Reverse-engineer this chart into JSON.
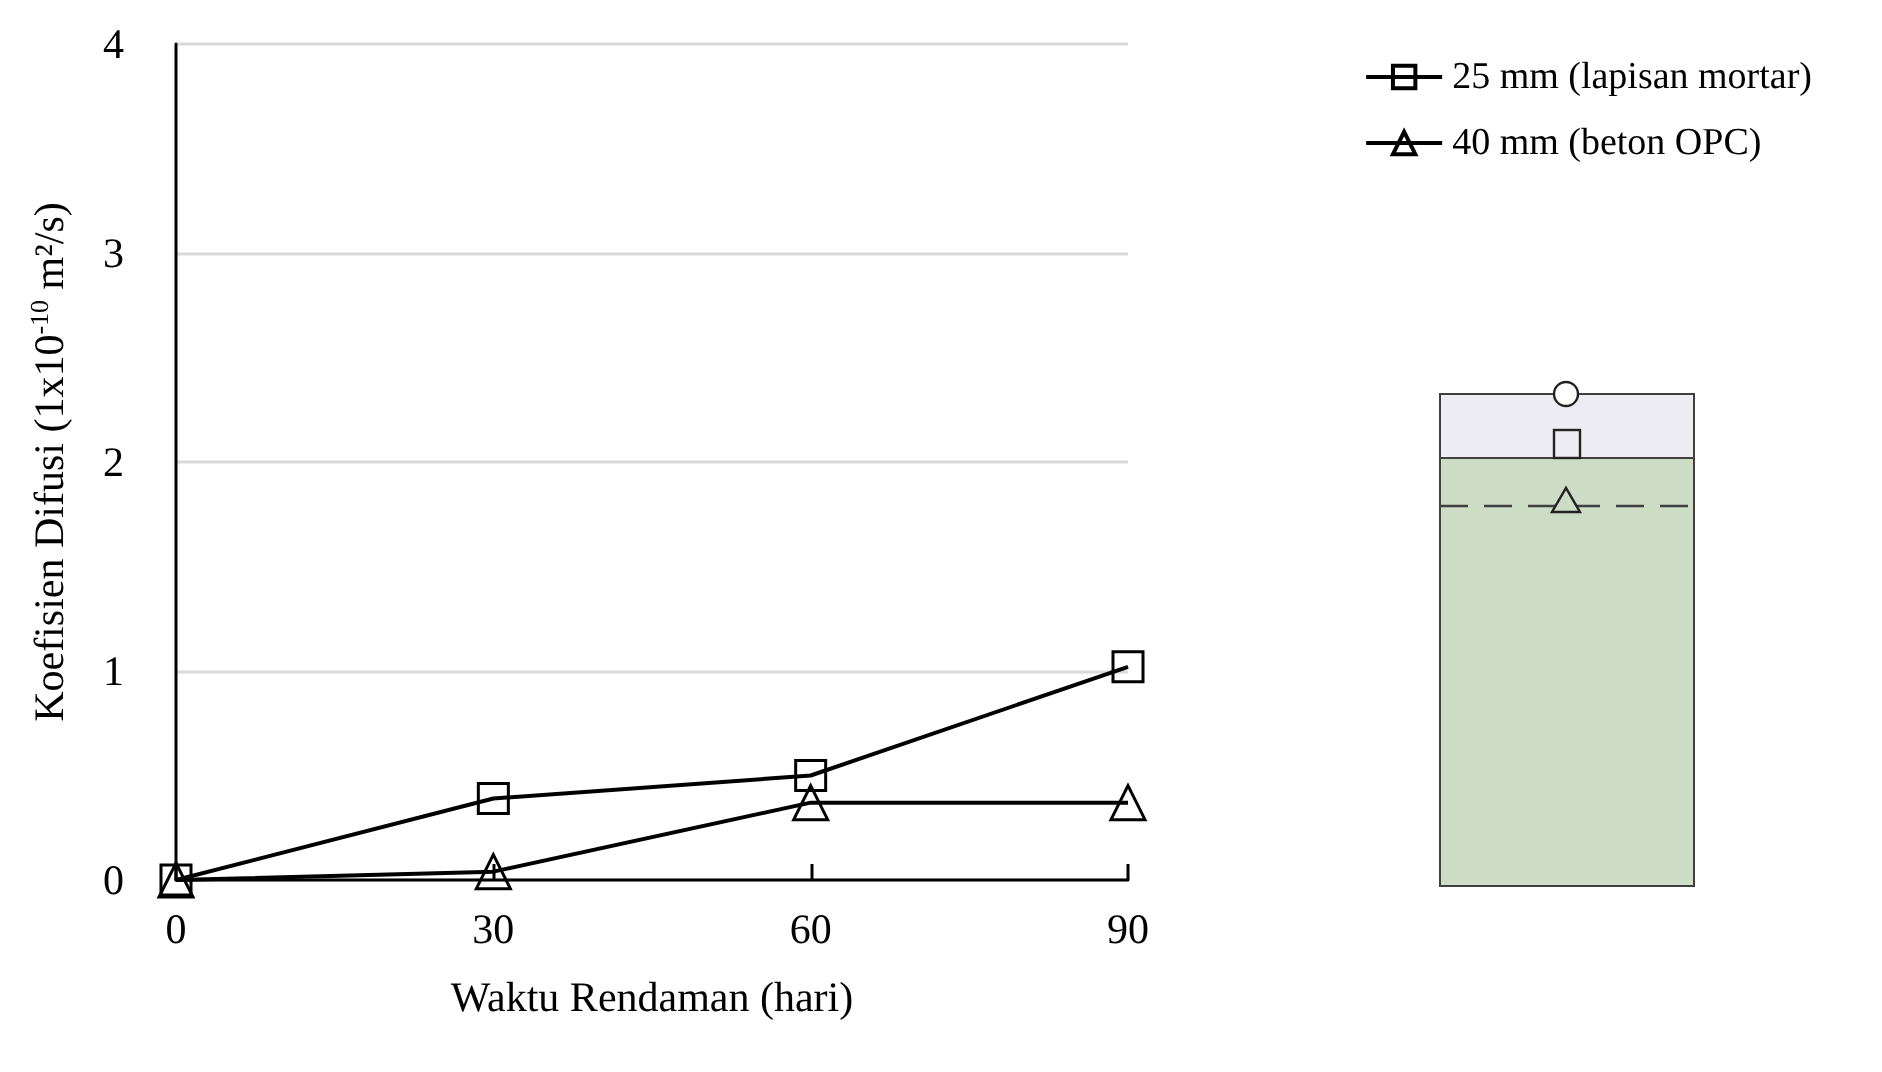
{
  "chart_data": {
    "type": "line",
    "xlabel": "Waktu Rendaman (hari)",
    "ylabel": "Koefisien Difusi (1x10$^{-10}$ m²/s)",
    "x": [
      0,
      30,
      60,
      90
    ],
    "series": [
      {
        "name": "25 mm (lapisan mortar)",
        "color": "#000000",
        "marker": "square",
        "values": [
          0,
          0.39,
          0.5,
          1.02
        ]
      },
      {
        "name": "40 mm (beton OPC)",
        "color": "#000000",
        "marker": "triangle",
        "values": [
          0,
          0.04,
          0.37,
          0.37
        ]
      }
    ],
    "xlim": [
      0,
      90
    ],
    "xticks": [
      0,
      30,
      60,
      90
    ],
    "ylim": [
      0,
      4
    ],
    "yticks": [
      0,
      1,
      2,
      3,
      4
    ],
    "grid": "y",
    "legend": "top right",
    "line_style": "solid"
  }
}
